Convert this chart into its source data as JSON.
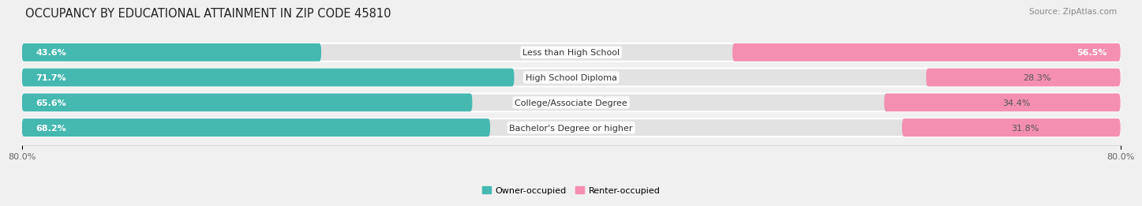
{
  "title": "OCCUPANCY BY EDUCATIONAL ATTAINMENT IN ZIP CODE 45810",
  "source": "Source: ZipAtlas.com",
  "categories": [
    "Less than High School",
    "High School Diploma",
    "College/Associate Degree",
    "Bachelor's Degree or higher"
  ],
  "owner_values": [
    43.6,
    71.7,
    65.6,
    68.2
  ],
  "renter_values": [
    56.5,
    28.3,
    34.4,
    31.8
  ],
  "owner_color": "#45B8B0",
  "renter_color": "#F48FB1",
  "background_color": "#f0f0f0",
  "row_bg_color": "#e2e2e2",
  "xlim": [
    -80,
    80
  ],
  "xtick_left": -80,
  "xtick_right": 80,
  "bar_height": 0.72,
  "title_fontsize": 10.5,
  "source_fontsize": 7.5,
  "label_fontsize": 8,
  "value_fontsize": 8,
  "tick_fontsize": 8,
  "legend_fontsize": 8,
  "owner_threshold": 15,
  "renter_threshold": 40
}
